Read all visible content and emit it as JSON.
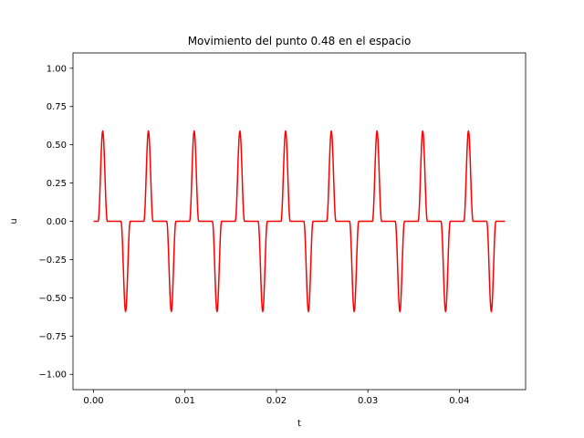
{
  "chart_data": {
    "type": "line",
    "title": "Movimiento del punto 0.48 en el espacio",
    "xlabel": "t",
    "ylabel": "u",
    "xlim": [
      -0.00225,
      0.04725
    ],
    "ylim": [
      -1.1,
      1.1
    ],
    "xticks": [
      0.0,
      0.01,
      0.02,
      0.03,
      0.04
    ],
    "xtick_labels": [
      "0.00",
      "0.01",
      "0.02",
      "0.03",
      "0.04"
    ],
    "yticks": [
      -1.0,
      -0.75,
      -0.5,
      -0.25,
      0.0,
      0.25,
      0.5,
      0.75,
      1.0
    ],
    "ytick_labels": [
      "−1.00",
      "−0.75",
      "−0.50",
      "−0.25",
      "0.00",
      "0.25",
      "0.50",
      "0.75",
      "1.00"
    ],
    "grid": false,
    "series": [
      {
        "color": "#ff0000",
        "period": 0.005,
        "positive_pulse_center": 0.001,
        "negative_pulse_center": 0.0035,
        "pulse_half_width": 0.0005,
        "amplitude": 0.59,
        "x_start": 0.0,
        "x_end": 0.045
      }
    ]
  }
}
